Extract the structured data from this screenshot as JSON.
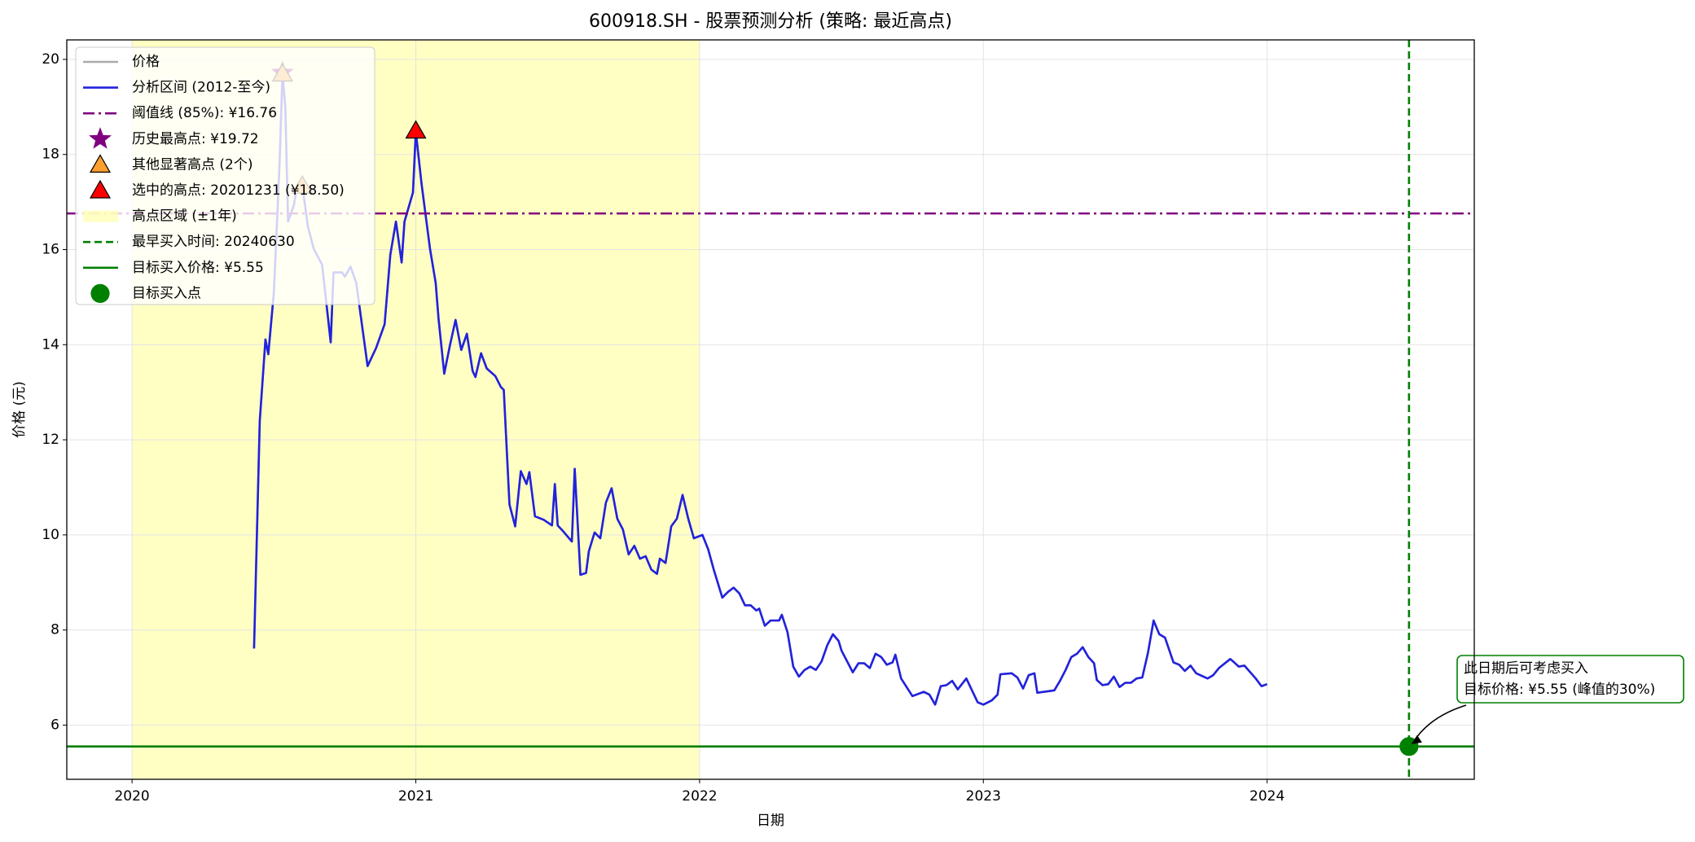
{
  "chart_data": {
    "type": "line",
    "title": "600918.SH  - 股票预测分析 (策略: 最近高点)",
    "x_label": "日期",
    "y_label": "价格 (元)",
    "xlim": [
      2019.77,
      2024.73
    ],
    "xticks": [
      2020,
      2021,
      2022,
      2023,
      2024
    ],
    "ylim": [
      4.86,
      20.41
    ],
    "yticks": [
      6,
      8,
      10,
      12,
      14,
      16,
      18,
      20
    ],
    "grid": true,
    "legend": "upper left",
    "x": [
      2020.43,
      2020.45,
      2020.47,
      2020.48,
      2020.5,
      2020.52,
      2020.53,
      2020.54,
      2020.55,
      2020.57,
      2020.58,
      2020.6,
      2020.62,
      2020.64,
      2020.67,
      2020.7,
      2020.71,
      2020.74,
      2020.75,
      2020.77,
      2020.79,
      2020.81,
      2020.83,
      2020.86,
      2020.89,
      2020.91,
      2020.93,
      2020.95,
      2020.96,
      2020.99,
      2021.0,
      2021.02,
      2021.05,
      2021.07,
      2021.08,
      2021.1,
      2021.12,
      2021.14,
      2021.16,
      2021.18,
      2021.2,
      2021.21,
      2021.23,
      2021.25,
      2021.28,
      2021.3,
      2021.31,
      2021.33,
      2021.35,
      2021.37,
      2021.39,
      2021.4,
      2021.42,
      2021.45,
      2021.48,
      2021.49,
      2021.5,
      2021.52,
      2021.55,
      2021.56,
      2021.58,
      2021.6,
      2021.61,
      2021.63,
      2021.65,
      2021.67,
      2021.69,
      2021.71,
      2021.73,
      2021.75,
      2021.77,
      2021.79,
      2021.81,
      2021.83,
      2021.85,
      2021.86,
      2021.88,
      2021.9,
      2021.92,
      2021.94,
      2021.96,
      2021.98,
      2022.01,
      2022.03,
      2022.05,
      2022.08,
      2022.1,
      2022.12,
      2022.14,
      2022.16,
      2022.18,
      2022.2,
      2022.21,
      2022.23,
      2022.25,
      2022.28,
      2022.29,
      2022.31,
      2022.33,
      2022.35,
      2022.37,
      2022.39,
      2022.41,
      2022.43,
      2022.45,
      2022.47,
      2022.49,
      2022.5,
      2022.54,
      2022.56,
      2022.58,
      2022.6,
      2022.62,
      2022.64,
      2022.66,
      2022.68,
      2022.69,
      2022.71,
      2022.75,
      2022.79,
      2022.81,
      2022.83,
      2022.85,
      2022.87,
      2022.89,
      2022.91,
      2022.94,
      2022.98,
      2023.0,
      2023.03,
      2023.05,
      2023.06,
      2023.1,
      2023.12,
      2023.14,
      2023.16,
      2023.18,
      2023.19,
      2023.25,
      2023.27,
      2023.29,
      2023.31,
      2023.33,
      2023.35,
      2023.37,
      2023.39,
      2023.4,
      2023.42,
      2023.44,
      2023.46,
      2023.48,
      2023.5,
      2023.52,
      2023.54,
      2023.56,
      2023.58,
      2023.6,
      2023.62,
      2023.64,
      2023.67,
      2023.69,
      2023.71,
      2023.73,
      2023.75,
      2023.79,
      2023.81,
      2023.83,
      2023.87,
      2023.88,
      2023.9,
      2023.92,
      2023.96,
      2023.98,
      2024.0
    ],
    "series": [
      {
        "name": "价格",
        "color": "#aaaaaa",
        "values": [
          7.61,
          12.39,
          14.11,
          13.8,
          15.11,
          17.84,
          19.7,
          18.98,
          16.59,
          16.93,
          17.27,
          17.34,
          16.48,
          16.02,
          15.68,
          14.05,
          15.52,
          15.52,
          15.43,
          15.64,
          15.3,
          14.43,
          13.55,
          13.93,
          14.43,
          15.89,
          16.59,
          15.73,
          16.59,
          17.2,
          18.48,
          17.39,
          16.02,
          15.3,
          14.55,
          13.39,
          13.98,
          14.52,
          13.89,
          14.23,
          13.45,
          13.32,
          13.82,
          13.5,
          13.34,
          13.11,
          13.05,
          10.64,
          10.18,
          11.34,
          11.07,
          11.32,
          10.39,
          10.32,
          10.2,
          11.07,
          10.2,
          10.07,
          9.86,
          11.39,
          9.16,
          9.2,
          9.66,
          10.05,
          9.93,
          10.68,
          10.98,
          10.34,
          10.11,
          9.59,
          9.77,
          9.5,
          9.55,
          9.27,
          9.18,
          9.5,
          9.41,
          10.18,
          10.34,
          10.84,
          10.34,
          9.93,
          10.0,
          9.7,
          9.27,
          8.68,
          8.8,
          8.89,
          8.77,
          8.52,
          8.52,
          8.41,
          8.45,
          8.09,
          8.2,
          8.2,
          8.32,
          7.95,
          7.23,
          7.02,
          7.16,
          7.23,
          7.16,
          7.34,
          7.68,
          7.91,
          7.77,
          7.57,
          7.11,
          7.3,
          7.3,
          7.2,
          7.5,
          7.43,
          7.27,
          7.32,
          7.48,
          6.98,
          6.61,
          6.7,
          6.64,
          6.43,
          6.82,
          6.84,
          6.93,
          6.75,
          6.98,
          6.48,
          6.43,
          6.52,
          6.64,
          7.07,
          7.09,
          7.0,
          6.77,
          7.05,
          7.09,
          6.68,
          6.73,
          6.93,
          7.16,
          7.43,
          7.5,
          7.64,
          7.43,
          7.3,
          6.95,
          6.84,
          6.86,
          7.02,
          6.8,
          6.89,
          6.89,
          6.98,
          7.0,
          7.52,
          8.2,
          7.91,
          7.84,
          7.32,
          7.27,
          7.14,
          7.25,
          7.09,
          6.98,
          7.05,
          7.2,
          7.39,
          7.34,
          7.23,
          7.25,
          6.98,
          6.82,
          6.86
        ]
      },
      {
        "name": "分析区间 (2012-至今)",
        "color": "#2222dd",
        "values": [
          7.61,
          12.39,
          14.11,
          13.8,
          15.11,
          17.84,
          19.7,
          18.98,
          16.59,
          16.93,
          17.27,
          17.34,
          16.48,
          16.02,
          15.68,
          14.05,
          15.52,
          15.52,
          15.43,
          15.64,
          15.3,
          14.43,
          13.55,
          13.93,
          14.43,
          15.89,
          16.59,
          15.73,
          16.59,
          17.2,
          18.48,
          17.39,
          16.02,
          15.3,
          14.55,
          13.39,
          13.98,
          14.52,
          13.89,
          14.23,
          13.45,
          13.32,
          13.82,
          13.5,
          13.34,
          13.11,
          13.05,
          10.64,
          10.18,
          11.34,
          11.07,
          11.32,
          10.39,
          10.32,
          10.2,
          11.07,
          10.2,
          10.07,
          9.86,
          11.39,
          9.16,
          9.2,
          9.66,
          10.05,
          9.93,
          10.68,
          10.98,
          10.34,
          10.11,
          9.59,
          9.77,
          9.5,
          9.55,
          9.27,
          9.18,
          9.5,
          9.41,
          10.18,
          10.34,
          10.84,
          10.34,
          9.93,
          10.0,
          9.7,
          9.27,
          8.68,
          8.8,
          8.89,
          8.77,
          8.52,
          8.52,
          8.41,
          8.45,
          8.09,
          8.2,
          8.2,
          8.32,
          7.95,
          7.23,
          7.02,
          7.16,
          7.23,
          7.16,
          7.34,
          7.68,
          7.91,
          7.77,
          7.57,
          7.11,
          7.3,
          7.3,
          7.2,
          7.5,
          7.43,
          7.27,
          7.32,
          7.48,
          6.98,
          6.61,
          6.7,
          6.64,
          6.43,
          6.82,
          6.84,
          6.93,
          6.75,
          6.98,
          6.48,
          6.43,
          6.52,
          6.64,
          7.07,
          7.09,
          7.0,
          6.77,
          7.05,
          7.09,
          6.68,
          6.73,
          6.93,
          7.16,
          7.43,
          7.5,
          7.64,
          7.43,
          7.3,
          6.95,
          6.84,
          6.86,
          7.02,
          6.8,
          6.89,
          6.89,
          6.98,
          7.0,
          7.52,
          8.2,
          7.91,
          7.84,
          7.32,
          7.27,
          7.14,
          7.25,
          7.09,
          6.98,
          7.05,
          7.2,
          7.39,
          7.34,
          7.23,
          7.25,
          6.98,
          6.82,
          6.86
        ]
      }
    ],
    "hlines": [
      {
        "name": "阈值线 (85%): ¥16.76",
        "value": 16.76,
        "color": "purple",
        "style": "dashdot"
      },
      {
        "name": "目标买入价格: ¥5.55",
        "value": 5.55,
        "color": "green",
        "style": "solid"
      }
    ],
    "vlines": [
      {
        "name": "最早买入时间: 20240630",
        "x": 2024.5,
        "color": "green",
        "style": "dashed"
      }
    ],
    "spans": [
      {
        "name": "高点区域 (±1年)",
        "x": [
          2020.0,
          2022.0
        ],
        "color": "#ffffb0"
      }
    ],
    "points": [
      {
        "name": "历史最高点: ¥19.72",
        "marker": "star",
        "color": "purple",
        "x": [
          2020.53
        ],
        "values": [
          19.72
        ]
      },
      {
        "name": "其他显著高点 (2个)",
        "marker": "triangle",
        "color": "#ff9f2e",
        "x": [
          2020.53,
          2020.6
        ],
        "values": [
          19.7,
          17.34
        ]
      },
      {
        "name": "选中的高点: 20201231 (¥18.50)",
        "marker": "triangle",
        "color": "red",
        "x": [
          2021.0
        ],
        "values": [
          18.5
        ]
      },
      {
        "name": "目标买入点",
        "marker": "circle",
        "color": "green",
        "x": [
          2024.5
        ],
        "values": [
          5.55
        ]
      }
    ],
    "annotation": {
      "lines": [
        "此日期后可考虑买入",
        "目标价格: ¥5.55 (峰值的30%)"
      ],
      "x": 2024.5,
      "y": 5.55
    }
  }
}
